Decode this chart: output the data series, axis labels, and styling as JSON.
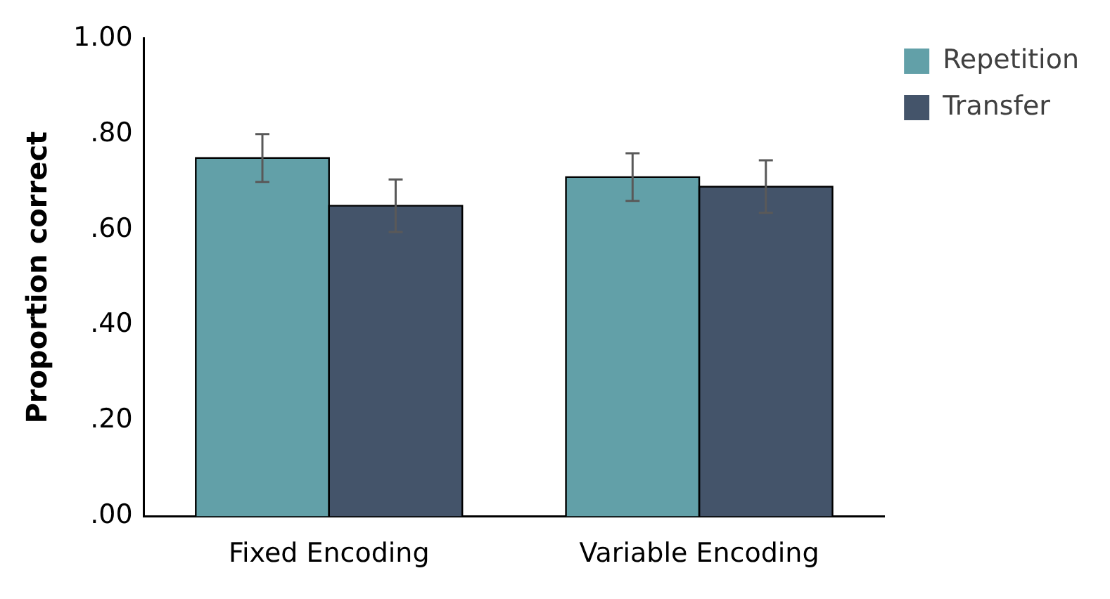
{
  "chart_data": {
    "type": "bar",
    "ylabel": "Proportion correct",
    "categories": [
      "Fixed Encoding",
      "Variable Encoding"
    ],
    "series": [
      {
        "name": "Repetition",
        "color": "#62a0a8",
        "values": [
          0.75,
          0.71
        ],
        "errors": [
          0.05,
          0.05
        ]
      },
      {
        "name": "Transfer",
        "color": "#44546a",
        "values": [
          0.65,
          0.69
        ],
        "errors": [
          0.055,
          0.055
        ]
      }
    ],
    "ylim": [
      0,
      1
    ],
    "yticks": [
      {
        "value": 0,
        "label": ".00"
      },
      {
        "value": 0.2,
        "label": ".20"
      },
      {
        "value": 0.4,
        "label": ".40"
      },
      {
        "value": 0.6,
        "label": ".60"
      },
      {
        "value": 0.8,
        "label": ".80"
      },
      {
        "value": 1,
        "label": "1.00"
      }
    ],
    "grid": false,
    "legend": "top right"
  }
}
